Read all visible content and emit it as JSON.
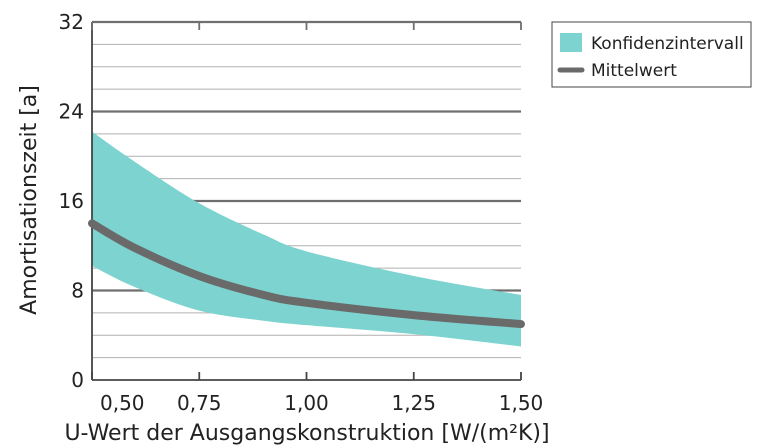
{
  "chart_data": {
    "type": "area",
    "xlabel": "U-Wert der Ausgangskonstruktion [W/(m²K)]",
    "ylabel": "Amortisationszeit [a]",
    "xlim": [
      0.5,
      1.5
    ],
    "ylim": [
      0,
      32
    ],
    "x_ticks": [
      0.5,
      0.75,
      1.0,
      1.25,
      1.5
    ],
    "x_tick_labels": [
      "0,50",
      "0,75",
      "1,00",
      "1,25",
      "1,50"
    ],
    "y_ticks": [
      0,
      8,
      16,
      24,
      32
    ],
    "y_tick_labels": [
      "0",
      "8",
      "16",
      "24",
      "32"
    ],
    "grid": true,
    "legend_position": "right",
    "series": [
      {
        "name": "Konfidenzintervall",
        "kind": "band",
        "color": "#7dd3cf",
        "x": [
          0.5,
          0.6,
          0.75,
          0.9,
          1.0,
          1.25,
          1.5
        ],
        "upper": [
          22.2,
          19.5,
          15.8,
          13.0,
          11.5,
          9.3,
          7.6
        ],
        "lower": [
          10.2,
          8.3,
          6.2,
          5.3,
          4.9,
          4.1,
          3.0
        ]
      },
      {
        "name": "Mittelwert",
        "kind": "line",
        "color": "#6a6a6a",
        "x": [
          0.5,
          0.6,
          0.75,
          0.9,
          1.0,
          1.25,
          1.5
        ],
        "values": [
          14.0,
          11.8,
          9.3,
          7.6,
          6.9,
          5.8,
          5.0
        ]
      }
    ]
  }
}
